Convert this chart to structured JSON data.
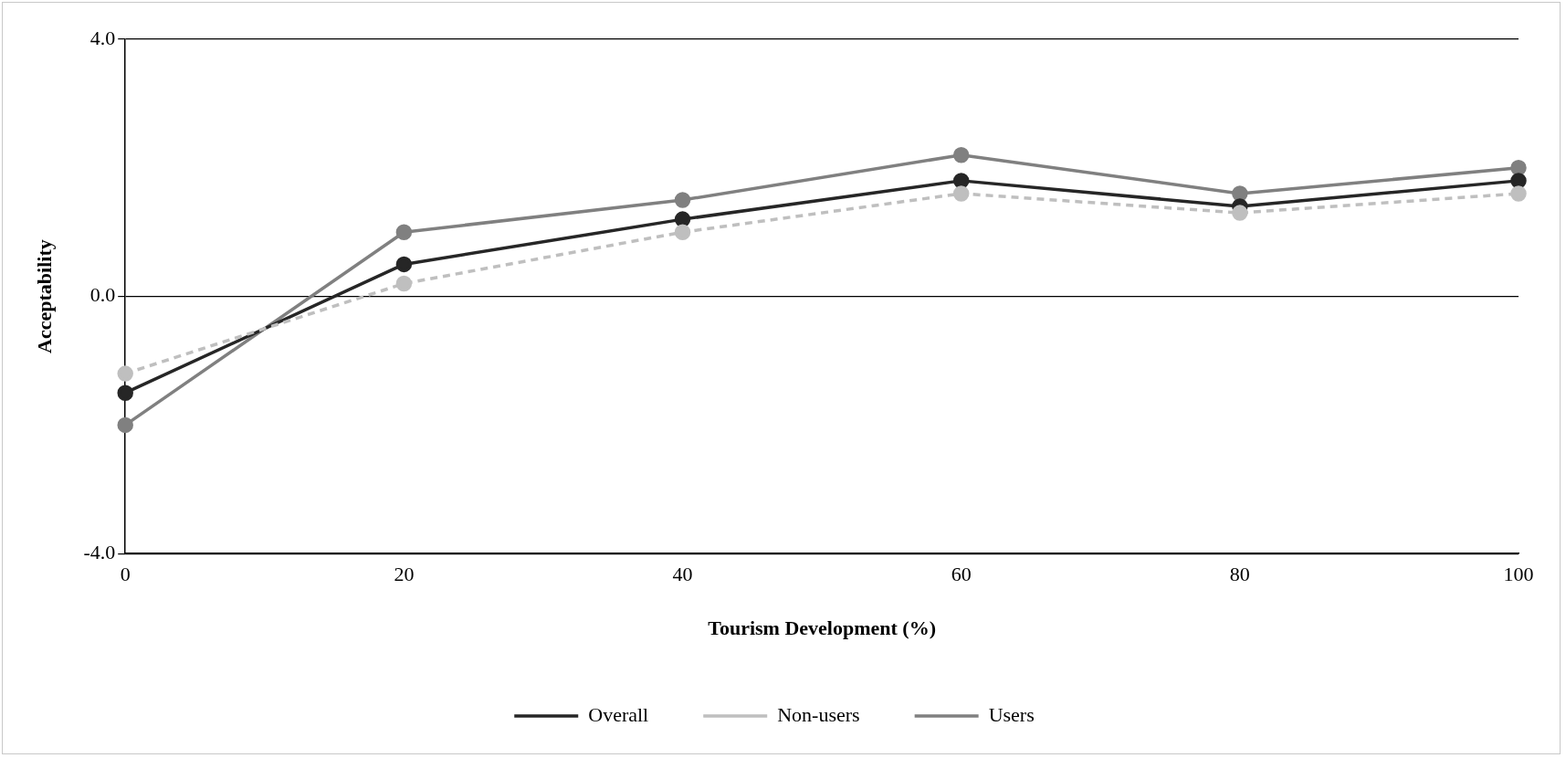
{
  "chart_data": {
    "type": "line",
    "xlabel": "Tourism Development (%)",
    "ylabel": "Acceptability",
    "x": [
      0,
      20,
      40,
      60,
      80,
      100
    ],
    "series": [
      {
        "name": "Overall",
        "color": "#262626",
        "line_style": "solid",
        "values": [
          -1.5,
          0.5,
          1.2,
          1.8,
          1.4,
          1.8
        ]
      },
      {
        "name": "Non-users",
        "color": "#bfbfbf",
        "line_style": "dashed",
        "values": [
          -1.2,
          0.2,
          1.0,
          1.6,
          1.3,
          1.6
        ]
      },
      {
        "name": "Users",
        "color": "#808080",
        "line_style": "solid",
        "values": [
          -2.0,
          1.0,
          1.5,
          2.2,
          1.6,
          2.0
        ]
      }
    ],
    "xlim": [
      0,
      100
    ],
    "xticks": [
      0,
      20,
      40,
      60,
      80,
      100
    ],
    "ylim": [
      -4,
      4
    ],
    "yticks": [
      {
        "value": -4,
        "label": "-4.0"
      },
      {
        "value": 0,
        "label": "0.0"
      },
      {
        "value": 4,
        "label": "4.0"
      }
    ],
    "grid": "y",
    "legend": "bottom",
    "marker": "circle"
  }
}
